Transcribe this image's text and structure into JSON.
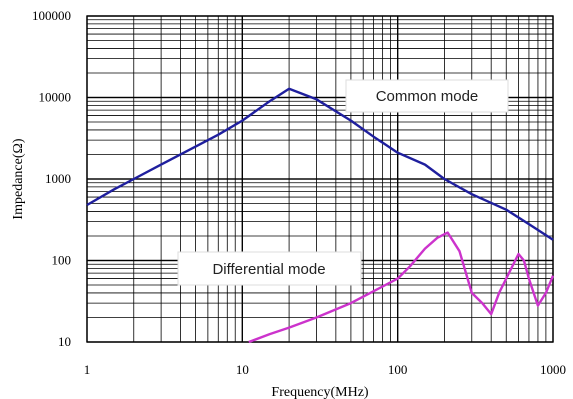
{
  "chart_data": {
    "type": "line",
    "xscale": "log",
    "yscale": "log",
    "xlim": [
      1,
      1000
    ],
    "ylim": [
      10,
      100000
    ],
    "xlabel": "Frequency(MHz)",
    "ylabel": "Impedance(Ω)",
    "x_ticks": [
      "1",
      "10",
      "100",
      "1000"
    ],
    "y_ticks": [
      "10",
      "100",
      "1000",
      "10000",
      "100000"
    ],
    "grid": true,
    "series": [
      {
        "name": "Common mode",
        "color": "#1f1f9e",
        "points": [
          [
            1,
            480
          ],
          [
            1.5,
            750
          ],
          [
            2,
            1000
          ],
          [
            3,
            1500
          ],
          [
            5,
            2500
          ],
          [
            7,
            3500
          ],
          [
            10,
            5200
          ],
          [
            15,
            9000
          ],
          [
            20,
            12800
          ],
          [
            30,
            9500
          ],
          [
            50,
            5200
          ],
          [
            70,
            3300
          ],
          [
            100,
            2100
          ],
          [
            150,
            1500
          ],
          [
            200,
            1000
          ],
          [
            300,
            650
          ],
          [
            500,
            420
          ],
          [
            700,
            280
          ],
          [
            1000,
            180
          ]
        ]
      },
      {
        "name": "Differential mode",
        "color": "#cc33cc",
        "points": [
          [
            11,
            10
          ],
          [
            15,
            12.5
          ],
          [
            20,
            15
          ],
          [
            30,
            20
          ],
          [
            50,
            30
          ],
          [
            70,
            42
          ],
          [
            100,
            60
          ],
          [
            120,
            85
          ],
          [
            150,
            140
          ],
          [
            180,
            190
          ],
          [
            210,
            220
          ],
          [
            250,
            130
          ],
          [
            300,
            40
          ],
          [
            350,
            30
          ],
          [
            400,
            22
          ],
          [
            450,
            40
          ],
          [
            500,
            60
          ],
          [
            600,
            120
          ],
          [
            650,
            100
          ],
          [
            700,
            60
          ],
          [
            800,
            28
          ],
          [
            900,
            40
          ],
          [
            1000,
            65
          ]
        ]
      }
    ],
    "annotations": [
      "Common mode",
      "Differential mode"
    ]
  }
}
